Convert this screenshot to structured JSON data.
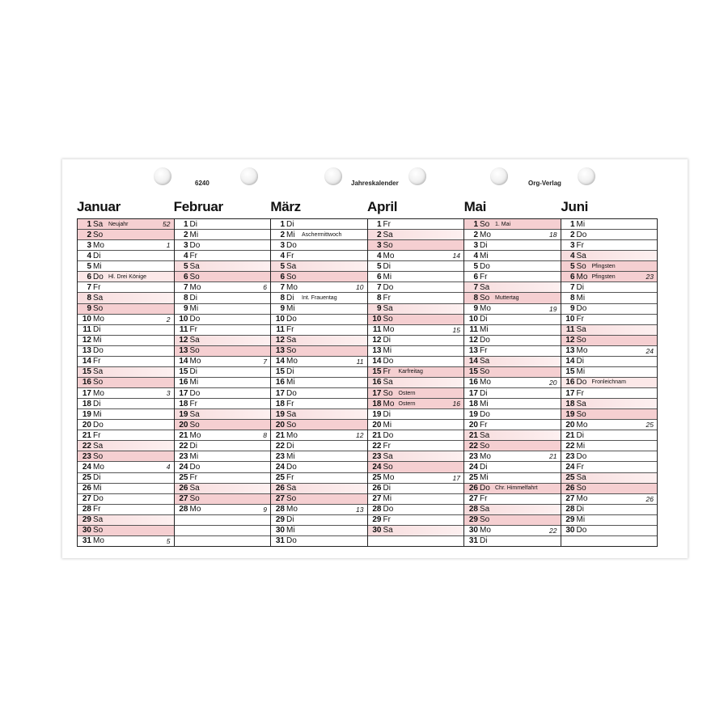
{
  "header": {
    "code": "6240",
    "title": "Jahreskalender",
    "publisher": "Org-Verlag"
  },
  "colors": {
    "saturday": "#f7dcdd",
    "sunday_holiday": "#f5cfd1",
    "light_holiday": "#fce8e8"
  },
  "months": [
    {
      "name": "Januar",
      "weekdays": [
        "Sa",
        "So",
        "Mo",
        "Di",
        "Mi",
        "Do",
        "Fr",
        "Sa",
        "So",
        "Mo",
        "Di",
        "Mi",
        "Do",
        "Fr",
        "Sa",
        "So",
        "Mo",
        "Di",
        "Mi",
        "Do",
        "Fr",
        "Sa",
        "So",
        "Mo",
        "Di",
        "Mi",
        "Do",
        "Fr",
        "Sa",
        "So",
        "Mo"
      ],
      "notes": {
        "1": "Neujahr",
        "6": "Hl. Drei Könige"
      },
      "weeks": {
        "1": "52",
        "3": "1",
        "10": "2",
        "17": "3",
        "24": "4",
        "31": "5"
      },
      "holidays": [
        1
      ],
      "light_holidays": [
        6
      ]
    },
    {
      "name": "Februar",
      "weekdays": [
        "Di",
        "Mi",
        "Do",
        "Fr",
        "Sa",
        "So",
        "Mo",
        "Di",
        "Mi",
        "Do",
        "Fr",
        "Sa",
        "So",
        "Mo",
        "Di",
        "Mi",
        "Do",
        "Fr",
        "Sa",
        "So",
        "Mo",
        "Di",
        "Mi",
        "Do",
        "Fr",
        "Sa",
        "So",
        "Mo"
      ],
      "notes": {},
      "weeks": {
        "7": "6",
        "14": "7",
        "21": "8",
        "28": "9"
      },
      "holidays": [],
      "light_holidays": []
    },
    {
      "name": "März",
      "weekdays": [
        "Di",
        "Mi",
        "Do",
        "Fr",
        "Sa",
        "So",
        "Mo",
        "Di",
        "Mi",
        "Do",
        "Fr",
        "Sa",
        "So",
        "Mo",
        "Di",
        "Mi",
        "Do",
        "Fr",
        "Sa",
        "So",
        "Mo",
        "Di",
        "Mi",
        "Do",
        "Fr",
        "Sa",
        "So",
        "Mo",
        "Di",
        "Mi",
        "Do"
      ],
      "notes": {
        "2": "Aschermittwoch",
        "8": "Int. Frauentag"
      },
      "weeks": {
        "7": "10",
        "14": "11",
        "21": "12",
        "28": "13"
      },
      "holidays": [],
      "light_holidays": []
    },
    {
      "name": "April",
      "weekdays": [
        "Fr",
        "Sa",
        "So",
        "Mo",
        "Di",
        "Mi",
        "Do",
        "Fr",
        "Sa",
        "So",
        "Mo",
        "Di",
        "Mi",
        "Do",
        "Fr",
        "Sa",
        "So",
        "Mo",
        "Di",
        "Mi",
        "Do",
        "Fr",
        "Sa",
        "So",
        "Mo",
        "Di",
        "Mi",
        "Do",
        "Fr",
        "Sa"
      ],
      "notes": {
        "15": "Karfreitag",
        "17": "Ostern",
        "18": "Ostern"
      },
      "weeks": {
        "4": "14",
        "11": "15",
        "18": "16",
        "25": "17"
      },
      "holidays": [
        15,
        17,
        18
      ],
      "light_holidays": []
    },
    {
      "name": "Mai",
      "weekdays": [
        "So",
        "Mo",
        "Di",
        "Mi",
        "Do",
        "Fr",
        "Sa",
        "So",
        "Mo",
        "Di",
        "Mi",
        "Do",
        "Fr",
        "Sa",
        "So",
        "Mo",
        "Di",
        "Mi",
        "Do",
        "Fr",
        "Sa",
        "So",
        "Mo",
        "Di",
        "Mi",
        "Do",
        "Fr",
        "Sa",
        "So",
        "Mo",
        "Di"
      ],
      "notes": {
        "1": "1. Mai",
        "8": "Muttertag",
        "26": "Chr. Himmelfahrt"
      },
      "weeks": {
        "2": "18",
        "9": "19",
        "16": "20",
        "23": "21",
        "30": "22"
      },
      "holidays": [
        1,
        8,
        26
      ],
      "light_holidays": []
    },
    {
      "name": "Juni",
      "weekdays": [
        "Mi",
        "Do",
        "Fr",
        "Sa",
        "So",
        "Mo",
        "Di",
        "Mi",
        "Do",
        "Fr",
        "Sa",
        "So",
        "Mo",
        "Di",
        "Mi",
        "Do",
        "Fr",
        "Sa",
        "So",
        "Mo",
        "Di",
        "Mi",
        "Do",
        "Fr",
        "Sa",
        "So",
        "Mo",
        "Di",
        "Mi",
        "Do"
      ],
      "notes": {
        "5": "Pfingsten",
        "6": "Pfingsten",
        "16": "Fronleichnam"
      },
      "weeks": {
        "6": "23",
        "13": "24",
        "20": "25",
        "27": "26"
      },
      "holidays": [
        5,
        6
      ],
      "light_holidays": [
        16
      ]
    }
  ]
}
